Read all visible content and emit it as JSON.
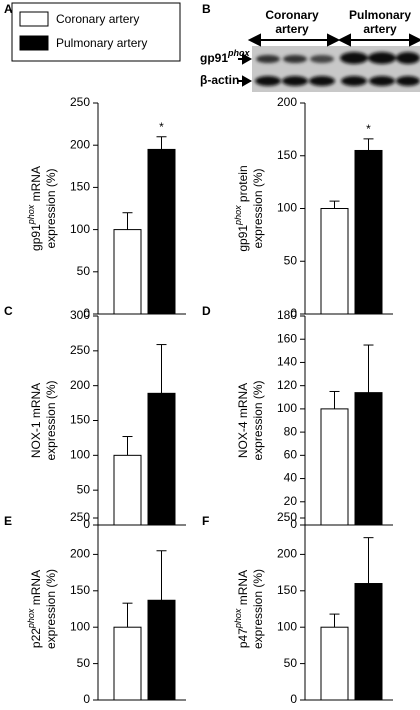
{
  "legend": [
    {
      "name": "Coronary artery",
      "color": "#ffffff"
    },
    {
      "name": "Pulmonary artery",
      "color": "#000000"
    }
  ],
  "blot": {
    "groups": [
      "Coronary artery",
      "Pulmonary artery"
    ],
    "rows": [
      [
        "gp91",
        "phox"
      ],
      [
        "β-actin"
      ]
    ]
  },
  "chart_data": [
    {
      "type": "bar",
      "panel": "A",
      "ylabel": [
        [
          "gp91",
          "phox",
          " mRNA"
        ],
        [
          "expression (%)"
        ]
      ],
      "values": [
        100,
        195
      ],
      "errors": [
        20,
        15
      ],
      "significance": [
        null,
        "*"
      ],
      "ylim": [
        0,
        250
      ],
      "yticks": [
        0,
        50,
        100,
        150,
        200,
        250
      ]
    },
    {
      "type": "bar",
      "panel": "B",
      "ylabel": [
        [
          "gp91",
          "phox",
          " protein"
        ],
        [
          "expression (%)"
        ]
      ],
      "values": [
        100,
        155
      ],
      "errors": [
        7,
        11
      ],
      "significance": [
        null,
        "*"
      ],
      "ylim": [
        0,
        200
      ],
      "yticks": [
        0,
        50,
        100,
        150,
        200
      ]
    },
    {
      "type": "bar",
      "panel": "C",
      "ylabel": [
        [
          "NOX-1 mRNA"
        ],
        [
          "expression (%)"
        ]
      ],
      "values": [
        100,
        189
      ],
      "errors": [
        27,
        70
      ],
      "ylim": [
        0,
        300
      ],
      "yticks": [
        0,
        50,
        100,
        150,
        200,
        250,
        300
      ]
    },
    {
      "type": "bar",
      "panel": "D",
      "ylabel": [
        [
          "NOX-4 mRNA"
        ],
        [
          "expression (%)"
        ]
      ],
      "values": [
        100,
        114
      ],
      "errors": [
        15,
        41
      ],
      "ylim": [
        0,
        180
      ],
      "yticks": [
        0,
        20,
        40,
        60,
        80,
        100,
        120,
        140,
        160,
        180
      ]
    },
    {
      "type": "bar",
      "panel": "E",
      "ylabel": [
        [
          "p22",
          "phox",
          " mRNA"
        ],
        [
          "expression (%)"
        ]
      ],
      "values": [
        100,
        137
      ],
      "errors": [
        33,
        68
      ],
      "ylim": [
        0,
        250
      ],
      "yticks": [
        0,
        50,
        100,
        150,
        200,
        250
      ]
    },
    {
      "type": "bar",
      "panel": "F",
      "ylabel": [
        [
          "p47",
          "phox",
          " mRNA"
        ],
        [
          "expression (%)"
        ]
      ],
      "values": [
        100,
        160
      ],
      "errors": [
        18,
        63
      ],
      "ylim": [
        0,
        250
      ],
      "yticks": [
        0,
        50,
        100,
        150,
        200,
        250
      ]
    }
  ]
}
